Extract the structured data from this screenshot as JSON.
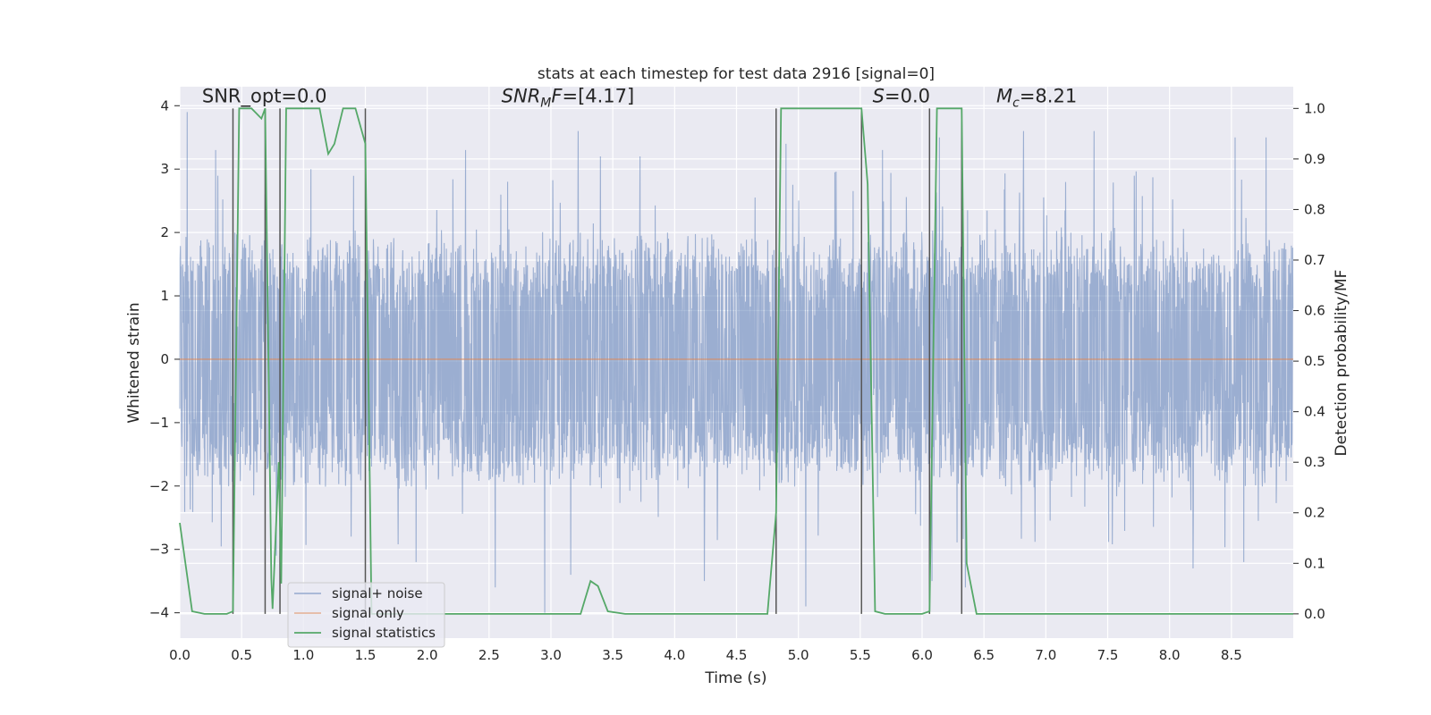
{
  "chart_data": {
    "type": "line",
    "title": "stats at each timestep for test data 2916 [signal=0]",
    "xlabel": "Time (s)",
    "ylabel_left": "Whitened strain",
    "ylabel_right": "Detection probability/MF",
    "xlim": [
      0.0,
      9.0
    ],
    "ylim_left": [
      -4.4,
      4.3
    ],
    "ylim_right": [
      -0.048,
      1.043
    ],
    "x_ticks": [
      "0.0",
      "0.5",
      "1.0",
      "1.5",
      "2.0",
      "2.5",
      "3.0",
      "3.5",
      "4.0",
      "4.5",
      "5.0",
      "5.5",
      "6.0",
      "6.5",
      "7.0",
      "7.5",
      "8.0",
      "8.5"
    ],
    "x_tick_values": [
      0.0,
      0.5,
      1.0,
      1.5,
      2.0,
      2.5,
      3.0,
      3.5,
      4.0,
      4.5,
      5.0,
      5.5,
      6.0,
      6.5,
      7.0,
      7.5,
      8.0,
      8.5
    ],
    "y_left_ticks": [
      "4",
      "3",
      "2",
      "1",
      "0",
      "−1",
      "−2",
      "−3",
      "−4"
    ],
    "y_left_tick_values": [
      4,
      3,
      2,
      1,
      0,
      -1,
      -2,
      -3,
      -4
    ],
    "y_right_ticks": [
      "1.0",
      "0.9",
      "0.8",
      "0.7",
      "0.6",
      "0.5",
      "0.4",
      "0.3",
      "0.2",
      "0.1",
      "0.0"
    ],
    "y_right_tick_values": [
      1.0,
      0.9,
      0.8,
      0.7,
      0.6,
      0.5,
      0.4,
      0.3,
      0.2,
      0.1,
      0.0
    ],
    "grid": true,
    "annotations": [
      {
        "text": "SNR_opt=0.0",
        "x": 0.18,
        "y": 4.05
      },
      {
        "text": "SNR",
        "sub": "M",
        "tail": "F=[4.17]",
        "italic": true,
        "x": 2.6,
        "y": 4.05
      },
      {
        "text": "S",
        "tail": "=0.0",
        "italic": true,
        "x": 5.6,
        "y": 4.05
      },
      {
        "text": "M",
        "sub": "c",
        "tail": "=8.21",
        "italic": true,
        "x": 6.6,
        "y": 4.05
      }
    ],
    "vertical_markers": [
      0.43,
      0.69,
      0.81,
      1.5,
      4.82,
      5.51,
      6.06,
      6.32
    ],
    "series": [
      {
        "name": "signal+ noise",
        "color": "#4c72b0",
        "axis": "left",
        "kind": "noise",
        "envelope_typical": 1.8,
        "peak_max": 4.0,
        "peak_min": -4.0,
        "peaks": [
          [
            0.06,
            3.9
          ],
          [
            0.29,
            3.3
          ],
          [
            0.69,
            2.6
          ],
          [
            0.81,
            2.5
          ],
          [
            1.06,
            3.0
          ],
          [
            2.31,
            3.3
          ],
          [
            2.65,
            2.8
          ],
          [
            3.22,
            3.6
          ],
          [
            3.4,
            3.2
          ],
          [
            3.72,
            3.2
          ],
          [
            4.9,
            3.4
          ],
          [
            5.68,
            3.3
          ],
          [
            6.14,
            3.5
          ],
          [
            6.82,
            3.6
          ],
          [
            7.39,
            3.6
          ],
          [
            8.53,
            3.5
          ],
          [
            8.78,
            3.5
          ],
          [
            2.55,
            -3.6
          ],
          [
            2.95,
            -4.0
          ],
          [
            3.16,
            -3.4
          ],
          [
            4.24,
            -3.5
          ],
          [
            5.06,
            -3.9
          ],
          [
            6.08,
            -3.5
          ],
          [
            6.35,
            -3.6
          ],
          [
            8.19,
            -3.3
          ],
          [
            8.6,
            -3.2
          ],
          [
            0.78,
            -3.1
          ],
          [
            1.91,
            -3.2
          ]
        ]
      },
      {
        "name": "signal only",
        "color": "#dd8452",
        "axis": "left",
        "kind": "flat",
        "value": 0.0
      },
      {
        "name": "signal statistics",
        "color": "#55a868",
        "axis": "right",
        "kind": "line",
        "x": [
          0.0,
          0.1,
          0.2,
          0.3,
          0.38,
          0.43,
          0.48,
          0.5,
          0.58,
          0.66,
          0.69,
          0.74,
          0.75,
          0.8,
          0.82,
          0.86,
          0.94,
          1.0,
          1.13,
          1.2,
          1.25,
          1.32,
          1.42,
          1.5,
          1.55,
          1.6,
          1.7,
          2.0,
          2.5,
          3.0,
          3.2,
          3.24,
          3.32,
          3.38,
          3.46,
          3.6,
          4.0,
          4.5,
          4.75,
          4.82,
          4.86,
          4.9,
          5.0,
          5.2,
          5.4,
          5.51,
          5.56,
          5.62,
          5.7,
          5.8,
          6.0,
          6.06,
          6.12,
          6.18,
          6.26,
          6.32,
          6.36,
          6.44,
          6.6,
          7.0,
          8.0,
          9.0
        ],
        "y": [
          0.18,
          0.005,
          0.0,
          0.0,
          0.0,
          0.005,
          1.0,
          1.0,
          1.0,
          0.98,
          1.0,
          0.07,
          0.01,
          0.3,
          0.06,
          1.0,
          1.0,
          1.0,
          1.0,
          0.91,
          0.93,
          1.0,
          1.0,
          0.93,
          0.0,
          0.0,
          0.0,
          0.0,
          0.0,
          0.0,
          0.0,
          0.0,
          0.065,
          0.055,
          0.005,
          0.0,
          0.0,
          0.0,
          0.0,
          0.2,
          1.0,
          1.0,
          1.0,
          1.0,
          1.0,
          1.0,
          0.85,
          0.005,
          0.0,
          0.0,
          0.0,
          0.005,
          1.0,
          1.0,
          1.0,
          1.0,
          0.1,
          0.0,
          0.0,
          0.0,
          0.0,
          0.0
        ]
      }
    ],
    "legend": {
      "placement": "lower-left",
      "entries": [
        "signal+ noise",
        "signal only",
        "signal statistics"
      ]
    }
  },
  "colors": {
    "axes_bg": "#eaeaf2",
    "grid": "#ffffff",
    "noise": "#4c72b0",
    "signal_only": "#dd8452",
    "stats": "#55a868",
    "marker": "#555555"
  }
}
